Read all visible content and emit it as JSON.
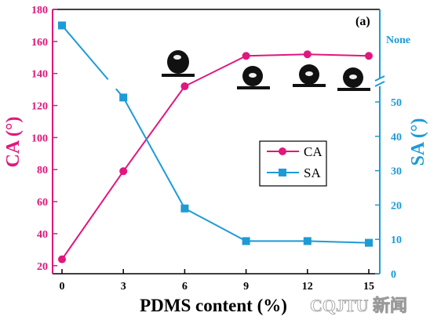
{
  "chart_data": {
    "type": "line",
    "panel_label": "(a)",
    "x": [
      0,
      3,
      6,
      9,
      12,
      15
    ],
    "xticks": [
      "0",
      "3",
      "6",
      "9",
      "12",
      "15"
    ],
    "xlabel": "PDMS content (%)",
    "ylabel_left": "CA (°)",
    "ylabel_right": "SA (°)",
    "ylim_left": [
      15,
      180
    ],
    "yticks_left": [
      "20",
      "40",
      "60",
      "80",
      "100",
      "120",
      "140",
      "160",
      "180"
    ],
    "ylim_right": [
      0,
      60
    ],
    "yticks_right": [
      "0",
      "10",
      "20",
      "30",
      "40",
      "50"
    ],
    "right_axis_break": true,
    "right_none_label": "None",
    "series": [
      {
        "name": "CA",
        "axis": "left",
        "marker": "circle",
        "color": "#E0177E",
        "values": [
          24,
          79,
          132,
          151,
          152,
          151
        ]
      },
      {
        "name": "SA",
        "axis": "right",
        "marker": "square",
        "color": "#1D9BD7",
        "values": [
          "None",
          54,
          19,
          9.5,
          9.5,
          9
        ],
        "display_y_left_units": [
          170,
          125,
          null,
          null,
          null,
          null
        ]
      }
    ],
    "legend_position": "center-right",
    "droplet_insets": 4,
    "watermark": "CQJTU 新闻"
  }
}
